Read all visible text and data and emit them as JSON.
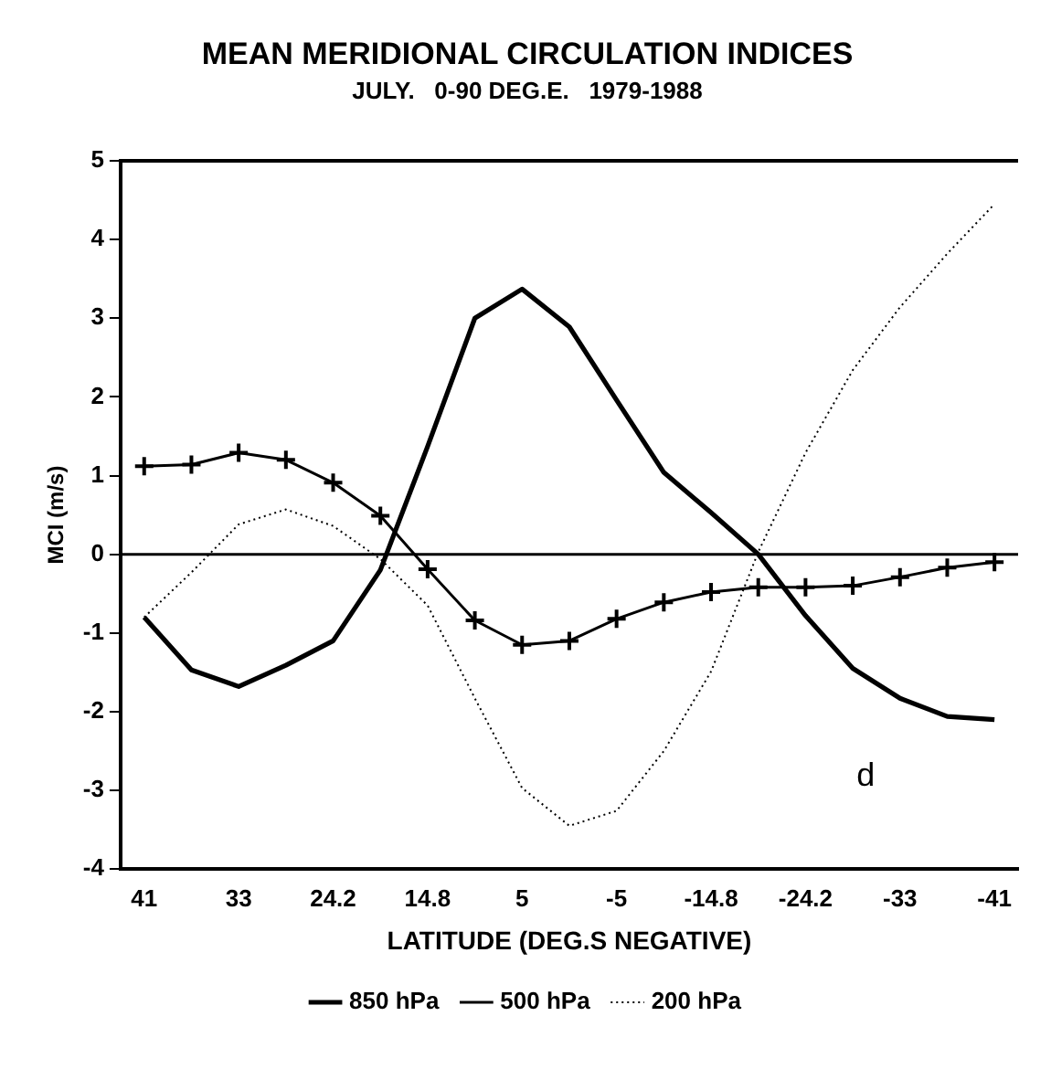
{
  "chart_data": {
    "type": "line",
    "title": "MEAN MERIDIONAL CIRCULATION INDICES",
    "subtitle": "JULY.   0-90 DEG.E.   1979-1988",
    "xlabel": "LATITUDE (DEG.S NEGATIVE)",
    "ylabel": "MCI (m/s)",
    "categories": [
      "41",
      null,
      "33",
      null,
      "24.2",
      null,
      "14.8",
      null,
      "5",
      null,
      "-5",
      null,
      "-14.8",
      null,
      "-24.2",
      null,
      "-33",
      null,
      "-41"
    ],
    "series": [
      {
        "name": "850 hPa",
        "color": "#000000",
        "marker": "none",
        "line_style": "solid",
        "values": [
          -0.8,
          -1.47,
          -1.68,
          -1.41,
          -1.1,
          -0.2,
          1.37,
          3.0,
          3.37,
          2.89,
          1.96,
          1.04,
          0.53,
          0.0,
          -0.78,
          -1.45,
          -1.83,
          -2.06,
          -2.1
        ]
      },
      {
        "name": "500 hPa",
        "color": "#000000",
        "marker": "cross",
        "line_style": "solid",
        "values": [
          1.12,
          1.14,
          1.29,
          1.2,
          0.91,
          0.49,
          -0.19,
          -0.84,
          -1.15,
          -1.1,
          -0.82,
          -0.61,
          -0.48,
          -0.42,
          -0.42,
          -0.4,
          -0.29,
          -0.17,
          -0.1
        ]
      },
      {
        "name": "200 hPa",
        "color": "#000000",
        "marker": "none",
        "line_style": "dotted",
        "values": [
          -0.8,
          -0.23,
          0.38,
          0.57,
          0.36,
          -0.06,
          -0.65,
          -1.83,
          -2.97,
          -3.45,
          -3.26,
          -2.5,
          -1.49,
          0.03,
          1.29,
          2.34,
          3.14,
          3.82,
          4.45
        ]
      }
    ],
    "ylim": [
      -4,
      5
    ],
    "yticks": [
      -4,
      -3,
      -2,
      -1,
      0,
      1,
      2,
      3,
      4,
      5
    ],
    "ref_lines": [
      {
        "axis": "y",
        "value": 0,
        "color": "#000000"
      }
    ],
    "annotations": [
      "d"
    ],
    "grid": false,
    "legend": "bottom"
  }
}
